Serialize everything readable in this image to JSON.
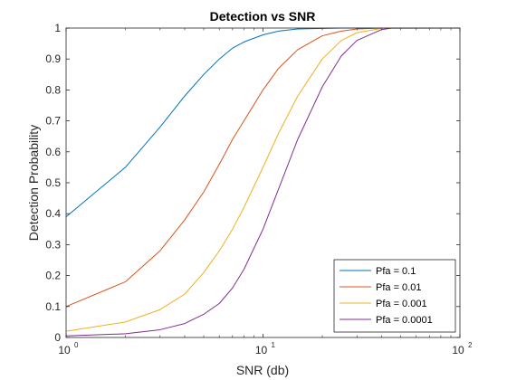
{
  "chart_data": {
    "type": "line",
    "title": "Detection vs SNR",
    "xlabel": "SNR (db)",
    "ylabel": "Detection Probability",
    "x_scale": "log",
    "xlim": [
      1,
      100
    ],
    "ylim": [
      0,
      1
    ],
    "x_ticks": [
      1,
      10,
      100
    ],
    "x_tick_labels": [
      "10",
      "10",
      "10"
    ],
    "x_tick_exponents": [
      "0",
      "1",
      "2"
    ],
    "y_ticks": [
      0,
      0.1,
      0.2,
      0.3,
      0.4,
      0.5,
      0.6,
      0.7,
      0.8,
      0.9,
      1
    ],
    "y_tick_labels": [
      "0",
      "0.1",
      "0.2",
      "0.3",
      "0.4",
      "0.5",
      "0.6",
      "0.7",
      "0.8",
      "0.9",
      "1"
    ],
    "grid": false,
    "legend_position": "bottom-right",
    "series": [
      {
        "name": "Pfa = 0.1",
        "color": "#0072BD",
        "x": [
          1,
          2,
          3,
          4,
          5,
          6,
          7,
          8,
          10,
          12,
          15,
          20,
          25,
          30,
          40,
          100
        ],
        "y": [
          0.39,
          0.55,
          0.68,
          0.78,
          0.85,
          0.9,
          0.935,
          0.955,
          0.978,
          0.99,
          0.997,
          0.999,
          1.0,
          1.0,
          1.0,
          1.0
        ]
      },
      {
        "name": "Pfa = 0.01",
        "color": "#D95319",
        "x": [
          1,
          2,
          3,
          4,
          5,
          6,
          7,
          8,
          10,
          12,
          15,
          20,
          25,
          30,
          40,
          100
        ],
        "y": [
          0.1,
          0.18,
          0.28,
          0.38,
          0.47,
          0.56,
          0.64,
          0.7,
          0.8,
          0.87,
          0.93,
          0.975,
          0.99,
          0.997,
          1.0,
          1.0
        ]
      },
      {
        "name": "Pfa = 0.001",
        "color": "#EDB120",
        "x": [
          1,
          2,
          3,
          4,
          5,
          6,
          7,
          8,
          10,
          12,
          15,
          20,
          25,
          30,
          40,
          100
        ],
        "y": [
          0.02,
          0.05,
          0.09,
          0.14,
          0.21,
          0.28,
          0.35,
          0.42,
          0.55,
          0.66,
          0.78,
          0.9,
          0.96,
          0.985,
          0.999,
          1.0
        ]
      },
      {
        "name": "Pfa = 0.0001",
        "color": "#7E2F8E",
        "x": [
          1,
          2,
          3,
          4,
          5,
          6,
          7,
          8,
          10,
          12,
          15,
          20,
          25,
          30,
          40,
          45,
          100
        ],
        "y": [
          0.005,
          0.012,
          0.025,
          0.045,
          0.075,
          0.11,
          0.16,
          0.22,
          0.35,
          0.48,
          0.64,
          0.81,
          0.91,
          0.96,
          0.995,
          1.0,
          1.0
        ]
      }
    ]
  }
}
